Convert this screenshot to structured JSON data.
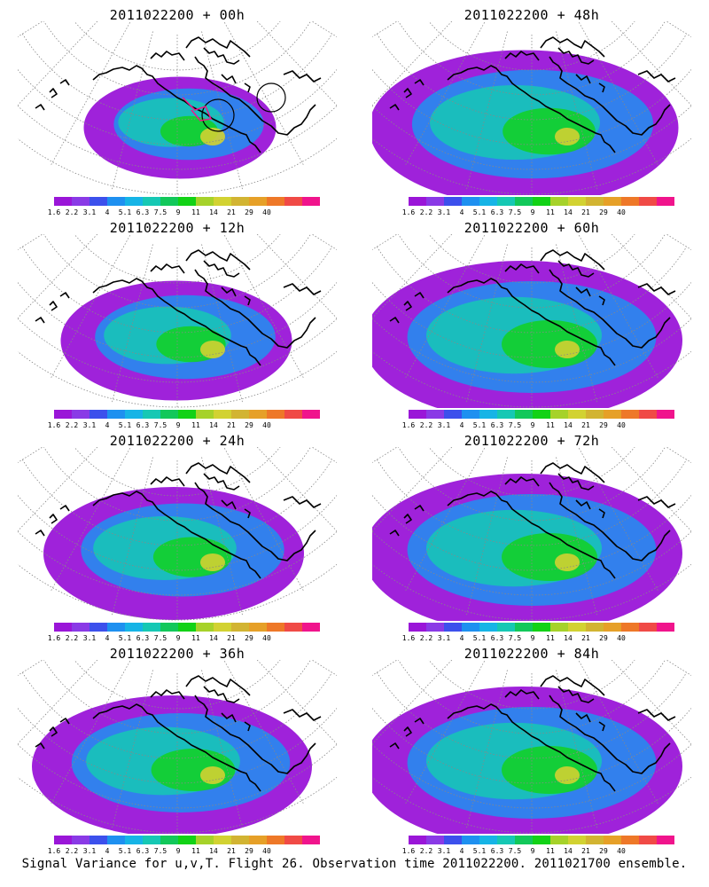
{
  "panels": [
    {
      "title": "2011022200 + 00h",
      "spread": 0.35
    },
    {
      "title": "2011022200 + 12h",
      "spread": 0.55
    },
    {
      "title": "2011022200 + 24h",
      "spread": 0.7
    },
    {
      "title": "2011022200 + 36h",
      "spread": 0.8
    },
    {
      "title": "2011022200 + 48h",
      "spread": 0.95
    },
    {
      "title": "2011022200 + 60h",
      "spread": 1.0
    },
    {
      "title": "2011022200 + 72h",
      "spread": 1.0
    },
    {
      "title": "2011022200 + 84h",
      "spread": 1.0
    }
  ],
  "colorbar": {
    "colors": [
      "#9a16d8",
      "#8a3ae6",
      "#3c50ec",
      "#1e90f0",
      "#16b4e6",
      "#16c8b4",
      "#12c85a",
      "#12d216",
      "#a6d22a",
      "#d2d232",
      "#d2b432",
      "#e6a028",
      "#ee7828",
      "#f04a46",
      "#f0148c"
    ],
    "labels": [
      "1.6",
      "2.2",
      "3.1",
      "4",
      "5.1",
      "6.3",
      "7.5",
      "9",
      "11",
      "14",
      "21",
      "29",
      "40"
    ]
  },
  "footer": "Signal Variance for u,v,T. Flight 26. Observation time 2011022200. 2011021700 ensemble."
}
